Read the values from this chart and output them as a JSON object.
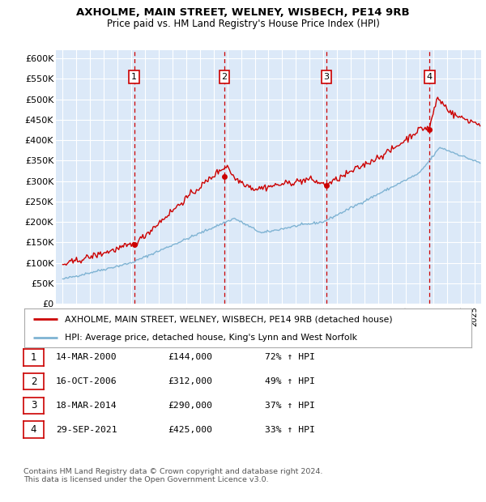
{
  "title1": "AXHOLME, MAIN STREET, WELNEY, WISBECH, PE14 9RB",
  "title2": "Price paid vs. HM Land Registry's House Price Index (HPI)",
  "legend_label_red": "AXHOLME, MAIN STREET, WELNEY, WISBECH, PE14 9RB (detached house)",
  "legend_label_blue": "HPI: Average price, detached house, King's Lynn and West Norfolk",
  "footer1": "Contains HM Land Registry data © Crown copyright and database right 2024.",
  "footer2": "This data is licensed under the Open Government Licence v3.0.",
  "transactions": [
    {
      "num": 1,
      "date": "14-MAR-2000",
      "price": "£144,000",
      "hpi": "72% ↑ HPI",
      "year": 2000.21
    },
    {
      "num": 2,
      "date": "16-OCT-2006",
      "price": "£312,000",
      "hpi": "49% ↑ HPI",
      "year": 2006.79
    },
    {
      "num": 3,
      "date": "18-MAR-2014",
      "price": "£290,000",
      "hpi": "37% ↑ HPI",
      "year": 2014.21
    },
    {
      "num": 4,
      "date": "29-SEP-2021",
      "price": "£425,000",
      "hpi": "33% ↑ HPI",
      "year": 2021.75
    }
  ],
  "transaction_values": [
    144000,
    312000,
    290000,
    425000
  ],
  "ylim": [
    0,
    620000
  ],
  "yticks": [
    0,
    50000,
    100000,
    150000,
    200000,
    250000,
    300000,
    350000,
    400000,
    450000,
    500000,
    550000,
    600000
  ],
  "xlim": [
    1994.5,
    2025.5
  ],
  "plot_bg_color": "#dce9f8",
  "red_color": "#cc0000",
  "blue_color": "#7fb3d3",
  "vline_color": "#cc0000",
  "grid_color": "#ffffff"
}
